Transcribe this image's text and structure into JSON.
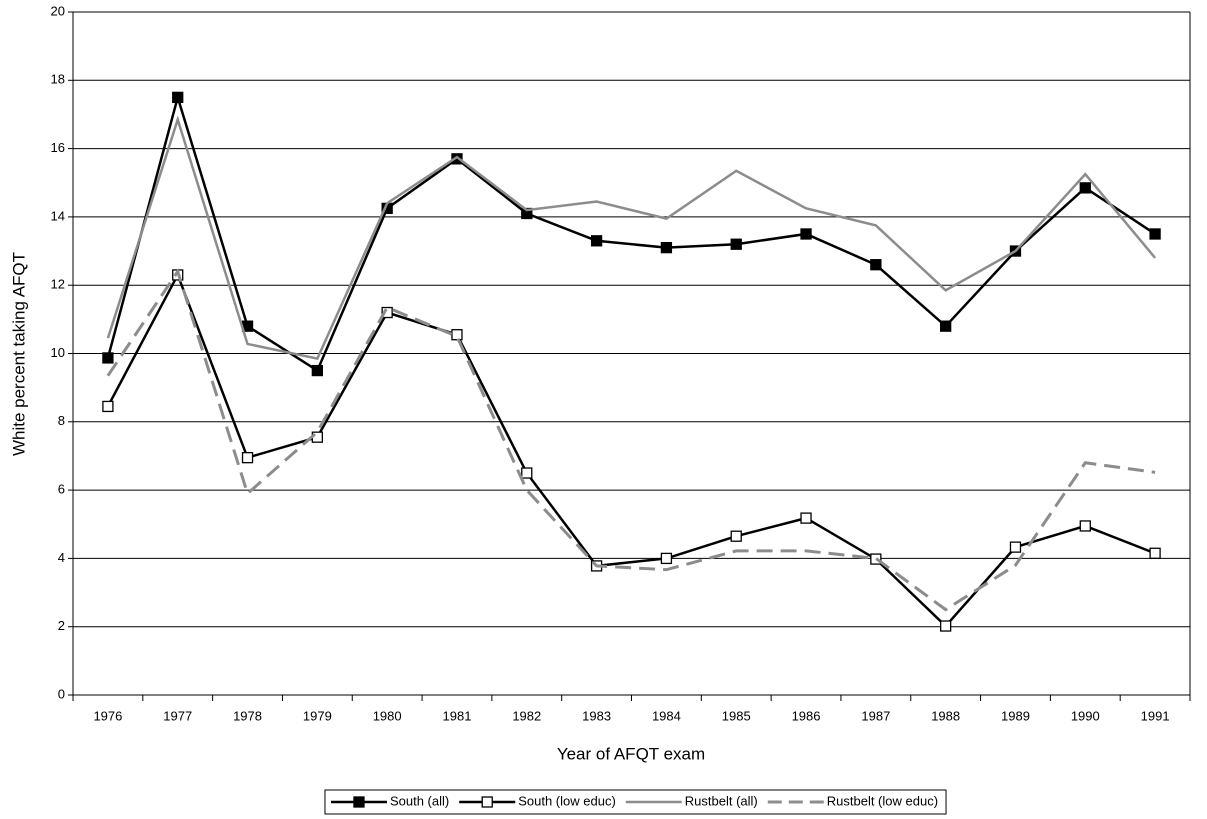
{
  "chart_data": {
    "type": "line",
    "x_label": "Year of AFQT exam",
    "y_label": "White percent taking AFQT",
    "categories": [
      "1976",
      "1977",
      "1978",
      "1979",
      "1980",
      "1981",
      "1982",
      "1983",
      "1984",
      "1985",
      "1986",
      "1987",
      "1988",
      "1989",
      "1990",
      "1991"
    ],
    "series": [
      {
        "name": "South (all)",
        "color": "#000000",
        "marker": "filled-square",
        "values": [
          9.87,
          17.5,
          10.8,
          9.5,
          14.25,
          15.7,
          14.1,
          13.3,
          13.1,
          13.2,
          13.5,
          12.6,
          10.8,
          13.0,
          14.85,
          13.5
        ]
      },
      {
        "name": "South (low educ)",
        "color": "#000000",
        "marker": "open-square",
        "values": [
          8.45,
          12.3,
          6.95,
          7.55,
          11.2,
          10.55,
          6.5,
          3.78,
          4.0,
          4.65,
          5.18,
          3.98,
          2.02,
          4.33,
          4.95,
          4.15
        ]
      },
      {
        "name": "Rustbelt (all)",
        "color": "#8c8c8c",
        "values": [
          10.45,
          16.85,
          10.28,
          9.85,
          14.4,
          15.75,
          14.2,
          14.45,
          13.95,
          15.35,
          14.25,
          13.75,
          11.85,
          13.0,
          15.25,
          12.8
        ]
      },
      {
        "name": "Rustbelt (low educ)",
        "color": "#8c8c8c",
        "dashed": true,
        "values": [
          9.35,
          12.4,
          5.9,
          7.7,
          11.35,
          10.5,
          6.0,
          3.78,
          3.67,
          4.22,
          4.22,
          4.0,
          2.5,
          3.8,
          6.8,
          6.52
        ]
      }
    ],
    "ylim": [
      0,
      20
    ],
    "yticks": [
      0,
      2,
      4,
      6,
      8,
      10,
      12,
      14,
      16,
      18,
      20
    ],
    "grid": true,
    "legend": "bottom"
  }
}
